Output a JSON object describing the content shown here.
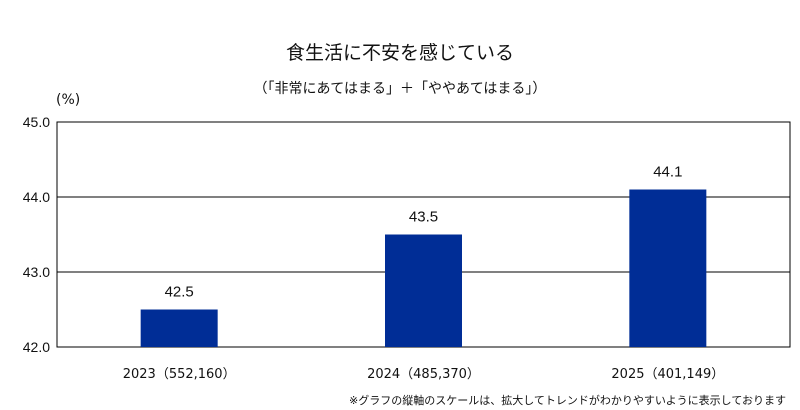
{
  "chart_data": {
    "type": "bar",
    "title": "食生活に不安を感じている",
    "subtitle": "（「非常にあてはまる」＋「ややあてはまる」）",
    "unit_label": "(%)",
    "categories": [
      "2023（552,160）",
      "2024（485,370）",
      "2025（401,149）"
    ],
    "values": [
      42.5,
      43.5,
      44.1
    ],
    "data_labels": [
      "42.5",
      "43.5",
      "44.1"
    ],
    "yticks": [
      "42.0",
      "43.0",
      "44.0",
      "45.0"
    ],
    "ylim": [
      42.0,
      45.0
    ],
    "grid": true,
    "bar_color": "#002d96",
    "note": "※グラフの縦軸のスケールは、拡大してトレンドがわかりやすいように表示しております"
  }
}
